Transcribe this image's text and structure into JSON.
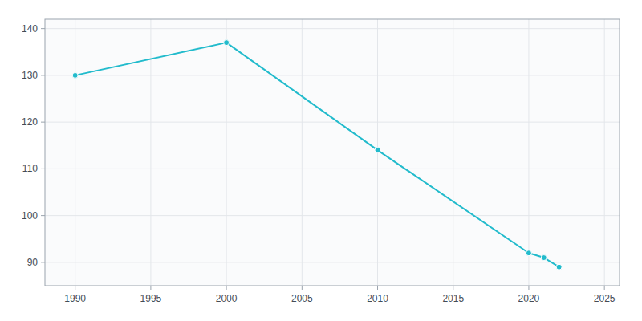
{
  "chart_data": {
    "type": "line",
    "x": [
      1990,
      2000,
      2010,
      2020,
      2021,
      2022
    ],
    "values": [
      130,
      137,
      114,
      92,
      91,
      89
    ],
    "color": "#22BBCC",
    "marker": "circle",
    "xlim": [
      1988,
      2026
    ],
    "ylim": [
      85,
      142
    ],
    "xticks": [
      1990,
      1995,
      2000,
      2005,
      2010,
      2015,
      2020,
      2025
    ],
    "yticks": [
      90,
      100,
      110,
      120,
      130,
      140
    ],
    "grid": true
  }
}
